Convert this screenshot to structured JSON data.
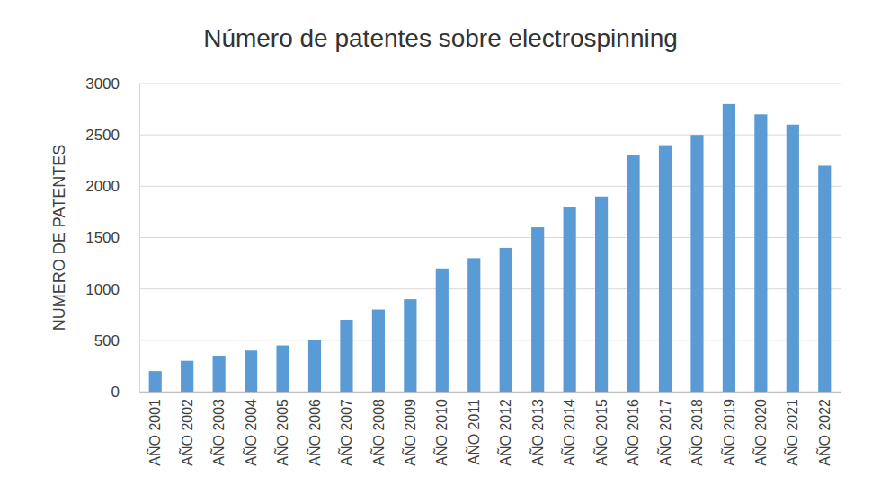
{
  "chart_data": {
    "type": "bar",
    "title": "Número de patentes sobre electrospinning",
    "y_label": "NUMERO DE PATENTES",
    "categories": [
      "AÑO 2001",
      "AÑO 2002",
      "AÑO 2003",
      "AÑO 2004",
      "AÑO 2005",
      "AÑO 2006",
      "AÑO 2007",
      "AÑO 2008",
      "AÑO 2009",
      "AÑO 2010",
      "AÑO 2011",
      "AÑO 2012",
      "AÑO 2013",
      "AÑO 2014",
      "AÑO 2015",
      "AÑO 2016",
      "AÑO 2017",
      "AÑO 2018",
      "AÑO 2019",
      "AÑO 2020",
      "AÑO 2021",
      "AÑO 2022"
    ],
    "values": [
      200,
      300,
      350,
      400,
      450,
      500,
      700,
      800,
      900,
      1200,
      1300,
      1400,
      1600,
      1800,
      1900,
      2300,
      2400,
      2500,
      2800,
      2700,
      2600,
      2200
    ],
    "color": "#5b9bd5",
    "ylim": [
      0,
      3000
    ],
    "yticks": [
      0,
      500,
      1000,
      1500,
      2000,
      2500,
      3000
    ],
    "grid": true
  }
}
